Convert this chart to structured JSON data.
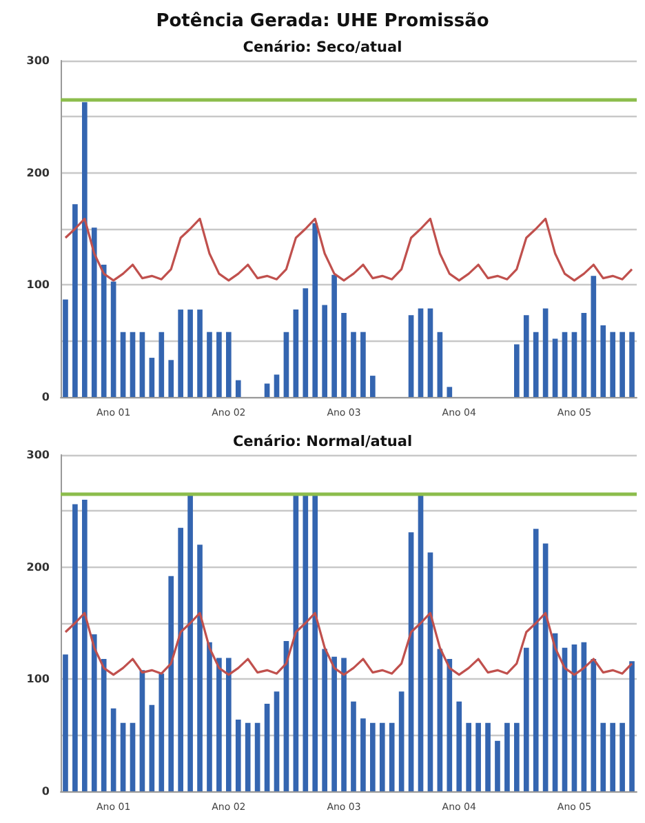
{
  "chart_data": [
    {
      "type": "bar",
      "title": "Potência Gerada: UHE Promissão",
      "subtitle": "Cenário: Seco/atual",
      "categories": [
        null,
        null,
        null,
        null,
        null,
        "Ano 01",
        null,
        null,
        null,
        null,
        null,
        null,
        null,
        null,
        null,
        null,
        null,
        "Ano 02",
        null,
        null,
        null,
        null,
        null,
        null,
        null,
        null,
        null,
        null,
        null,
        "Ano 03",
        null,
        null,
        null,
        null,
        null,
        null,
        null,
        null,
        null,
        null,
        null,
        "Ano 04",
        null,
        null,
        null,
        null,
        null,
        null,
        null,
        null,
        null,
        null,
        null,
        "Ano 05",
        null,
        null,
        null,
        null,
        null,
        null
      ],
      "series": [
        {
          "color": "#3465b0",
          "values": [
            87,
            172,
            263,
            151,
            118,
            103,
            58,
            58,
            58,
            35,
            58,
            33,
            78,
            78,
            78,
            58,
            58,
            58,
            15,
            0,
            0,
            12,
            20,
            58,
            78,
            97,
            155,
            82,
            109,
            75,
            58,
            58,
            19,
            0,
            0,
            0,
            73,
            79,
            79,
            58,
            9,
            0,
            0,
            0,
            0,
            0,
            0,
            47,
            73,
            58,
            79,
            52,
            58,
            58,
            75,
            108,
            64,
            58,
            58,
            58
          ]
        },
        {
          "type": "line",
          "color": "#c0504d",
          "values": [
            142,
            150,
            159,
            128,
            110,
            104,
            110,
            118,
            106,
            108,
            105,
            114,
            142,
            150,
            159,
            128,
            110,
            104,
            110,
            118,
            106,
            108,
            105,
            114,
            142,
            150,
            159,
            128,
            110,
            104,
            110,
            118,
            106,
            108,
            105,
            114,
            142,
            150,
            159,
            128,
            110,
            104,
            110,
            118,
            106,
            108,
            105,
            114,
            142,
            150,
            159,
            128,
            110,
            104,
            110,
            118,
            106,
            108,
            105,
            114
          ]
        }
      ],
      "ylim": [
        0,
        300
      ],
      "yticks": [
        0,
        {
          "value": 50,
          "label": null
        },
        100,
        {
          "value": 150,
          "label": null
        },
        200,
        {
          "value": 250,
          "label": null
        },
        300
      ],
      "grid": "y",
      "marker": "none",
      "ref_lines": [
        {
          "axis": "y",
          "value": 265,
          "label": null,
          "color": "#8cbd4c"
        }
      ]
    },
    {
      "type": "bar",
      "subtitle": "Cenário: Normal/atual",
      "categories": [
        null,
        null,
        null,
        null,
        null,
        "Ano 01",
        null,
        null,
        null,
        null,
        null,
        null,
        null,
        null,
        null,
        null,
        null,
        "Ano 02",
        null,
        null,
        null,
        null,
        null,
        null,
        null,
        null,
        null,
        null,
        null,
        "Ano 03",
        null,
        null,
        null,
        null,
        null,
        null,
        null,
        null,
        null,
        null,
        null,
        "Ano 04",
        null,
        null,
        null,
        null,
        null,
        null,
        null,
        null,
        null,
        null,
        null,
        "Ano 05",
        null,
        null,
        null,
        null,
        null,
        null
      ],
      "series": [
        {
          "color": "#3465b0",
          "values": [
            122,
            256,
            260,
            140,
            118,
            74,
            61,
            61,
            108,
            77,
            105,
            192,
            235,
            264,
            220,
            133,
            119,
            119,
            64,
            61,
            61,
            78,
            89,
            134,
            264,
            264,
            264,
            127,
            120,
            119,
            80,
            65,
            61,
            61,
            61,
            89,
            231,
            264,
            213,
            127,
            118,
            80,
            61,
            61,
            61,
            45,
            61,
            61,
            128,
            234,
            221,
            141,
            128,
            131,
            133,
            118,
            61,
            61,
            61,
            116
          ]
        },
        {
          "type": "line",
          "color": "#c0504d",
          "values": [
            142,
            150,
            159,
            128,
            110,
            104,
            110,
            118,
            106,
            108,
            105,
            114,
            142,
            150,
            159,
            128,
            110,
            104,
            110,
            118,
            106,
            108,
            105,
            114,
            142,
            150,
            159,
            128,
            110,
            104,
            110,
            118,
            106,
            108,
            105,
            114,
            142,
            150,
            159,
            128,
            110,
            104,
            110,
            118,
            106,
            108,
            105,
            114,
            142,
            150,
            159,
            128,
            110,
            104,
            110,
            118,
            106,
            108,
            105,
            114
          ]
        }
      ],
      "ylim": [
        0,
        300
      ],
      "yticks": [
        0,
        {
          "value": 50,
          "label": null
        },
        100,
        {
          "value": 150,
          "label": null
        },
        200,
        {
          "value": 250,
          "label": null
        },
        300
      ],
      "grid": "y",
      "marker": "none",
      "ref_lines": [
        {
          "axis": "y",
          "value": 265,
          "label": null,
          "color": "#8cbd4c"
        }
      ]
    }
  ]
}
